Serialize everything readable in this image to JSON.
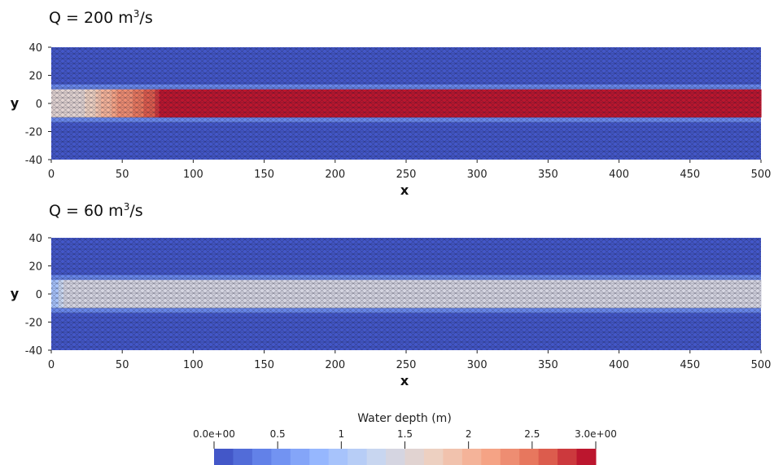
{
  "chart_data": [
    {
      "type": "heatmap",
      "title_prefix": "Q = 200 m",
      "title_sup": "3",
      "title_suffix": "/s",
      "xlabel": "x",
      "ylabel": "y",
      "xlim": [
        0,
        500
      ],
      "ylim": [
        -40,
        40
      ],
      "x_ticks": [
        0,
        50,
        100,
        150,
        200,
        250,
        300,
        350,
        400,
        450,
        500
      ],
      "y_ticks": [
        40,
        20,
        0,
        -20,
        -40
      ],
      "x_tick_labels": [
        "0",
        "50",
        "100",
        "150",
        "200",
        "250",
        "300",
        "350",
        "400",
        "450",
        "500"
      ],
      "y_tick_labels": [
        "40",
        "20",
        "0",
        "-20",
        "-40"
      ],
      "channel_y": [
        -10,
        10
      ],
      "bank_depth": 0.1,
      "channel_depth_profile": [
        {
          "x": 0,
          "depth": 1.5
        },
        {
          "x": 20,
          "depth": 1.55
        },
        {
          "x": 35,
          "depth": 1.9
        },
        {
          "x": 50,
          "depth": 2.3
        },
        {
          "x": 65,
          "depth": 2.55
        },
        {
          "x": 73,
          "depth": 2.7
        },
        {
          "x": 76,
          "depth": 2.95
        },
        {
          "x": 500,
          "depth": 3.0
        }
      ]
    },
    {
      "type": "heatmap",
      "title_prefix": "Q = 60 m",
      "title_sup": "3",
      "title_suffix": "/s",
      "xlabel": "x",
      "ylabel": "y",
      "xlim": [
        0,
        500
      ],
      "ylim": [
        -40,
        40
      ],
      "x_ticks": [
        0,
        50,
        100,
        150,
        200,
        250,
        300,
        350,
        400,
        450,
        500
      ],
      "y_ticks": [
        40,
        20,
        0,
        -20,
        -40
      ],
      "x_tick_labels": [
        "0",
        "50",
        "100",
        "150",
        "200",
        "250",
        "300",
        "350",
        "400",
        "450",
        "500"
      ],
      "y_tick_labels": [
        "40",
        "20",
        "0",
        "-20",
        "-40"
      ],
      "channel_y": [
        -10,
        10
      ],
      "bank_depth": 0.1,
      "channel_depth_profile": [
        {
          "x": 0,
          "depth": 0.6
        },
        {
          "x": 5,
          "depth": 1.2
        },
        {
          "x": 12,
          "depth": 1.45
        },
        {
          "x": 500,
          "depth": 1.5
        }
      ]
    }
  ],
  "colorbar": {
    "title": "Water depth (m)",
    "min": 0,
    "max": 3,
    "n_bands": 20,
    "ticks": [
      0,
      0.5,
      1,
      1.5,
      2,
      2.5,
      3
    ],
    "tick_labels": [
      "0.0e+00",
      "0.5",
      "1",
      "1.5",
      "2",
      "2.5",
      "3.0e+00"
    ],
    "colormap": "coolwarm",
    "colormap_stops": [
      "#3b4cc0",
      "#6788ee",
      "#9abbff",
      "#c9d7f0",
      "#edd1c2",
      "#f7a889",
      "#e26952",
      "#b40426"
    ],
    "mesh_line_color": "#1a1a33"
  }
}
